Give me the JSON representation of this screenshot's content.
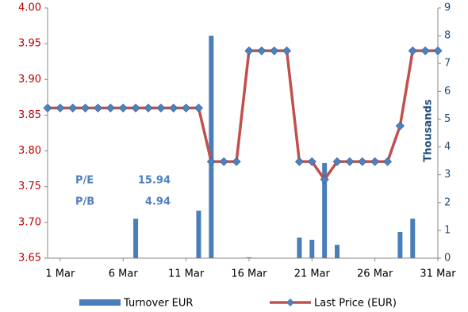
{
  "chart_data": {
    "type": "combo",
    "y2label": "Thousands",
    "xlim": [
      0,
      31
    ],
    "xticks": [
      {
        "value": 1,
        "label": "1 Mar"
      },
      {
        "value": 6,
        "label": "6 Mar"
      },
      {
        "value": 11,
        "label": "11 Mar"
      },
      {
        "value": 16,
        "label": "16 Mar"
      },
      {
        "value": 21,
        "label": "21 Mar"
      },
      {
        "value": 26,
        "label": "26 Mar"
      },
      {
        "value": 31,
        "label": "31 Mar"
      }
    ],
    "ylim": [
      3.65,
      4
    ],
    "yticks": [
      3.65,
      {
        "value": 3.7,
        "label": "3.70"
      },
      3.75,
      {
        "value": 3.8,
        "label": "3.80"
      },
      3.85,
      {
        "value": 3.9,
        "label": "3.90"
      },
      3.95,
      {
        "value": 4,
        "label": "4.00"
      }
    ],
    "y2lim": [
      0,
      9
    ],
    "y2ticks": [
      0,
      1,
      2,
      3,
      4,
      5,
      6,
      7,
      8,
      9
    ],
    "ytick_color": "#c00000",
    "y2tick_color": "#1f4e79",
    "series": [
      {
        "name": "Turnover EUR",
        "type": "bar",
        "axis": "y2",
        "color": "#4a7ebb",
        "x": [
          7,
          12,
          13,
          16,
          20,
          21,
          22,
          23,
          28,
          29
        ],
        "values": [
          1.42,
          1.71,
          8.0,
          0.03,
          0.74,
          0.66,
          3.42,
          0.48,
          0.94,
          1.42
        ]
      },
      {
        "name": "Last Price (EUR)",
        "type": "line",
        "color": "#c0504d",
        "marker_color": "#4f81bd",
        "x": [
          0,
          1,
          2,
          3,
          4,
          5,
          6,
          7,
          8,
          9,
          10,
          11,
          12,
          13,
          14,
          15,
          16,
          17,
          18,
          19,
          20,
          21,
          22,
          23,
          24,
          25,
          26,
          27,
          28,
          29,
          30,
          31
        ],
        "values": [
          3.86,
          3.86,
          3.86,
          3.86,
          3.86,
          3.86,
          3.86,
          3.86,
          3.86,
          3.86,
          3.86,
          3.86,
          3.86,
          3.785,
          3.785,
          3.785,
          3.94,
          3.94,
          3.94,
          3.94,
          3.785,
          3.785,
          3.76,
          3.785,
          3.785,
          3.785,
          3.785,
          3.785,
          3.835,
          3.94,
          3.94,
          3.94
        ]
      }
    ],
    "annotations": [
      {
        "label": "P/E",
        "value": 15.94
      },
      {
        "label": "P/B",
        "value": 4.94
      }
    ],
    "annotation_color": "#4f81bd"
  }
}
